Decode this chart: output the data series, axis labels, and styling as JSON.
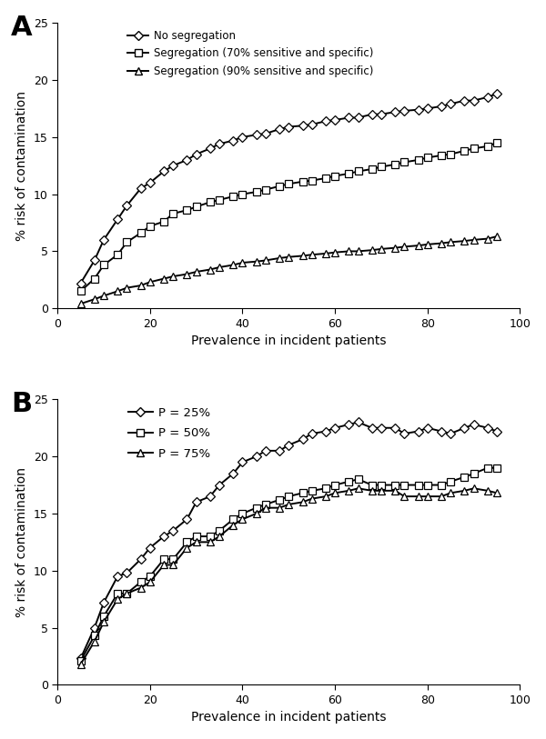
{
  "panel_A": {
    "x": [
      5,
      8,
      10,
      13,
      15,
      18,
      20,
      23,
      25,
      28,
      30,
      33,
      35,
      38,
      40,
      43,
      45,
      48,
      50,
      53,
      55,
      58,
      60,
      63,
      65,
      68,
      70,
      73,
      75,
      78,
      80,
      83,
      85,
      88,
      90,
      93,
      95
    ],
    "no_seg": [
      2.2,
      4.2,
      6.0,
      7.8,
      9.0,
      10.5,
      11.0,
      12.0,
      12.5,
      13.0,
      13.5,
      14.0,
      14.4,
      14.7,
      15.0,
      15.2,
      15.3,
      15.7,
      15.9,
      16.0,
      16.1,
      16.4,
      16.5,
      16.7,
      16.7,
      17.0,
      17.0,
      17.2,
      17.3,
      17.4,
      17.5,
      17.7,
      17.9,
      18.2,
      18.2,
      18.5,
      18.8
    ],
    "seg70": [
      1.5,
      2.6,
      3.8,
      4.7,
      5.8,
      6.6,
      7.2,
      7.6,
      8.3,
      8.6,
      8.9,
      9.3,
      9.5,
      9.8,
      10.0,
      10.2,
      10.4,
      10.7,
      10.9,
      11.1,
      11.2,
      11.4,
      11.6,
      11.8,
      12.0,
      12.2,
      12.4,
      12.6,
      12.8,
      13.0,
      13.2,
      13.4,
      13.5,
      13.8,
      14.0,
      14.2,
      14.5
    ],
    "seg90": [
      0.4,
      0.8,
      1.1,
      1.5,
      1.8,
      2.0,
      2.3,
      2.6,
      2.8,
      3.0,
      3.2,
      3.4,
      3.6,
      3.8,
      4.0,
      4.1,
      4.2,
      4.4,
      4.5,
      4.6,
      4.7,
      4.8,
      4.9,
      5.0,
      5.0,
      5.1,
      5.2,
      5.3,
      5.4,
      5.5,
      5.6,
      5.7,
      5.8,
      5.9,
      6.0,
      6.1,
      6.3
    ],
    "ylabel": "% risk of contamination",
    "xlabel": "Prevalence in incident patients",
    "ylim": [
      0,
      25
    ],
    "xlim": [
      0,
      100
    ],
    "yticks": [
      0,
      5,
      10,
      15,
      20,
      25
    ],
    "xticks": [
      0,
      20,
      40,
      60,
      80,
      100
    ],
    "legend": [
      "No segregation",
      "Segregation (70% sensitive and specific)",
      "Segregation (90% sensitive and specific)"
    ],
    "panel_label": "A"
  },
  "panel_B": {
    "x": [
      5,
      8,
      10,
      13,
      15,
      18,
      20,
      23,
      25,
      28,
      30,
      33,
      35,
      38,
      40,
      43,
      45,
      48,
      50,
      53,
      55,
      58,
      60,
      63,
      65,
      68,
      70,
      73,
      75,
      78,
      80,
      83,
      85,
      88,
      90,
      93,
      95
    ],
    "p25": [
      2.3,
      5.0,
      7.2,
      9.5,
      9.8,
      11.0,
      12.0,
      13.0,
      13.5,
      14.5,
      16.0,
      16.5,
      17.5,
      18.5,
      19.5,
      20.0,
      20.5,
      20.5,
      21.0,
      21.5,
      22.0,
      22.2,
      22.5,
      22.8,
      23.0,
      22.5,
      22.5,
      22.5,
      22.0,
      22.2,
      22.5,
      22.2,
      22.0,
      22.5,
      22.8,
      22.5,
      22.2
    ],
    "p50": [
      2.1,
      4.3,
      6.0,
      8.0,
      8.0,
      9.0,
      9.5,
      11.0,
      11.0,
      12.5,
      13.0,
      13.0,
      13.5,
      14.5,
      15.0,
      15.5,
      15.8,
      16.2,
      16.5,
      16.8,
      17.0,
      17.2,
      17.5,
      17.8,
      18.0,
      17.5,
      17.5,
      17.5,
      17.5,
      17.5,
      17.5,
      17.5,
      17.8,
      18.2,
      18.5,
      19.0,
      19.0
    ],
    "p75": [
      1.8,
      3.8,
      5.5,
      7.5,
      8.0,
      8.5,
      9.0,
      10.5,
      10.5,
      12.0,
      12.5,
      12.5,
      13.0,
      14.0,
      14.5,
      15.0,
      15.5,
      15.5,
      15.8,
      16.0,
      16.3,
      16.5,
      16.8,
      17.0,
      17.2,
      17.0,
      17.0,
      17.0,
      16.5,
      16.5,
      16.5,
      16.5,
      16.8,
      17.0,
      17.2,
      17.0,
      16.8
    ],
    "ylabel": "% risk of contamination",
    "xlabel": "Prevalence in incident patients",
    "ylim": [
      0,
      25
    ],
    "xlim": [
      0,
      100
    ],
    "yticks": [
      0,
      5,
      10,
      15,
      20,
      25
    ],
    "xticks": [
      0,
      20,
      40,
      60,
      80,
      100
    ],
    "legend": [
      "P = 25%",
      "P = 50%",
      "P = 75%"
    ],
    "panel_label": "B"
  },
  "line_color": "#000000",
  "bg_color": "#ffffff"
}
